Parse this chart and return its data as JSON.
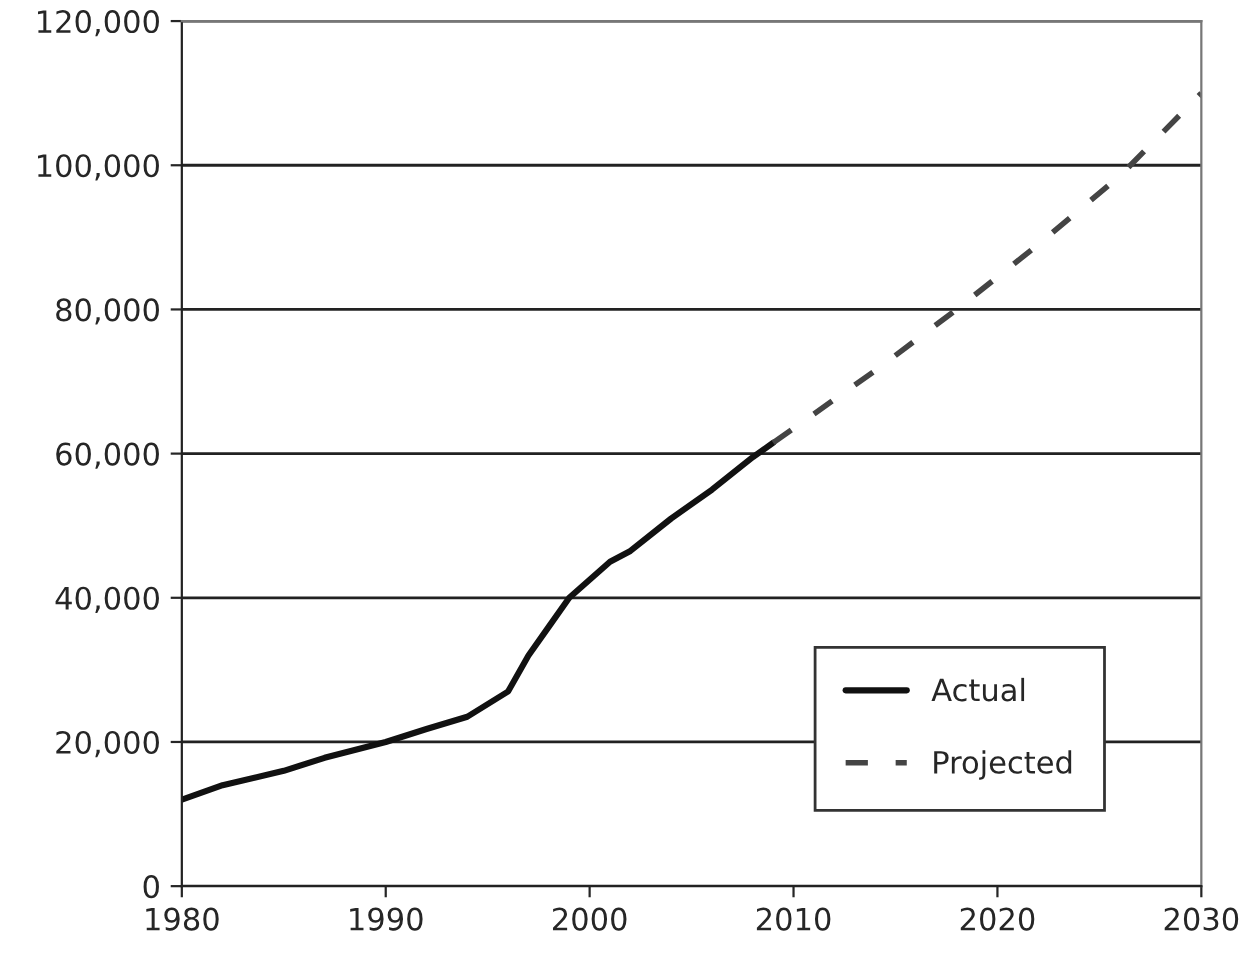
{
  "chart_data": {
    "type": "line",
    "x": [
      1980,
      1982,
      1985,
      1987,
      1990,
      1992,
      1994,
      1996,
      1997,
      1998,
      1999,
      2000,
      2001,
      2002,
      2004,
      2006,
      2008,
      2009
    ],
    "series": [
      {
        "name": "Actual",
        "color": "#111111",
        "line_style": "solid",
        "values": [
          12000,
          14000,
          16000,
          17800,
          20000,
          21800,
          23500,
          27000,
          32000,
          36000,
          40000,
          42500,
          45000,
          46500,
          51000,
          55000,
          59500,
          61500
        ]
      },
      {
        "name": "Projected",
        "color": "#444444",
        "line_style": "dashed",
        "x": [
          2009,
          2014,
          2018,
          2022,
          2026,
          2030
        ],
        "values": [
          61500,
          71500,
          80000,
          89000,
          98500,
          110000
        ]
      }
    ],
    "xlim": [
      1980,
      2030
    ],
    "xticks": [
      1980,
      1990,
      2000,
      2010,
      2020,
      2030
    ],
    "ylim": [
      0,
      120000
    ],
    "yticks": [
      {
        "value": 0,
        "label": "0"
      },
      {
        "value": 20000,
        "label": "20,000"
      },
      {
        "value": 40000,
        "label": "40,000"
      },
      {
        "value": 60000,
        "label": "60,000"
      },
      {
        "value": 80000,
        "label": "80,000"
      },
      {
        "value": 100000,
        "label": "100,000"
      },
      {
        "value": 120000,
        "label": "120,000"
      }
    ],
    "grid": "y",
    "legend": "lower right",
    "marker": "none"
  }
}
